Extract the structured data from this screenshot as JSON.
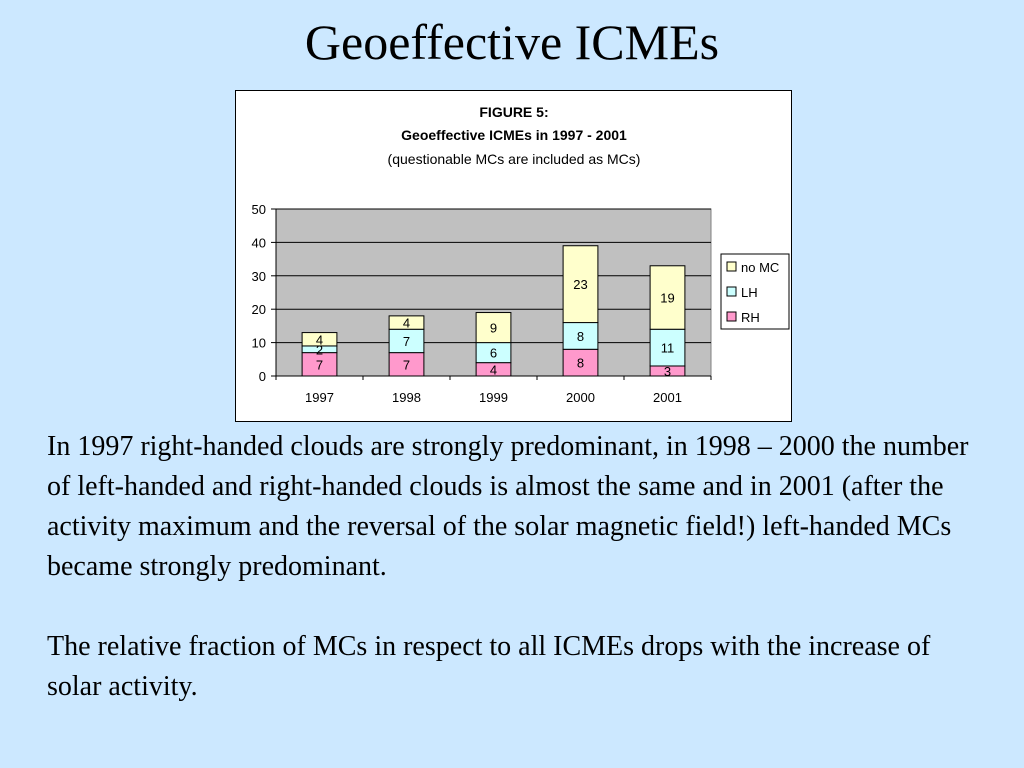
{
  "slide": {
    "title": "Geoeffective ICMEs",
    "paragraphs": [
      "In 1997 right-handed clouds are strongly predominant, in 1998 – 2000 the number of left-handed and right-handed clouds is almost the same and in 2001 (after the activity maximum and the reversal of the solar magnetic field!) left-handed MCs became strongly predominant.",
      "The relative fraction of MCs in respect to all ICMEs drops with the increase of solar activity."
    ]
  },
  "chart_data": {
    "type": "bar",
    "stacked": true,
    "title_lines": [
      "FIGURE 5:",
      "Geoeffective ICMEs in 1997 - 2001",
      "(questionable MCs are included as MCs)"
    ],
    "categories": [
      "1997",
      "1998",
      "1999",
      "2000",
      "2001"
    ],
    "series": [
      {
        "name": "RH",
        "values": [
          7,
          7,
          4,
          8,
          3
        ],
        "color": "#ff99cc"
      },
      {
        "name": "LH",
        "values": [
          2,
          7,
          6,
          8,
          11
        ],
        "color": "#ccffff"
      },
      {
        "name": "no MC",
        "values": [
          4,
          4,
          9,
          23,
          19
        ],
        "color": "#ffffcc"
      }
    ],
    "ylim": [
      0,
      50
    ],
    "yticks": [
      "0",
      "10",
      "20",
      "30",
      "40",
      "50"
    ],
    "grid": true,
    "plot_background": "#c0c0c0",
    "legend_position": "right",
    "legend_order": [
      "no MC",
      "LH",
      "RH"
    ]
  }
}
